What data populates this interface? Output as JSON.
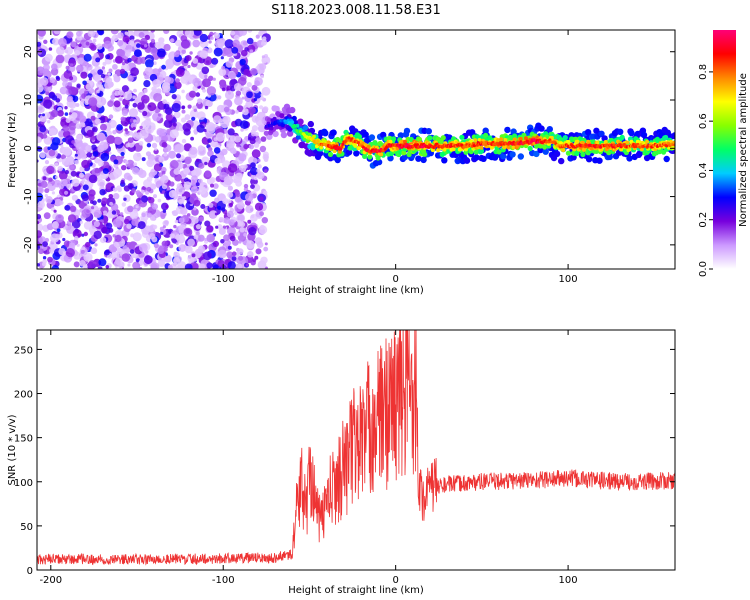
{
  "title": "S118.2023.008.11.58.E31",
  "colors": {
    "snr_line": "#ee3333",
    "colormap": [
      "#ffffff",
      "#cc99ff",
      "#7700dd",
      "#0000ff",
      "#00ccff",
      "#00ff66",
      "#88ff00",
      "#ffff00",
      "#ff8800",
      "#ff0000",
      "#ff0077"
    ]
  },
  "chart_data": [
    {
      "type": "heatmap",
      "xlabel": "Height of straight line (km)",
      "ylabel": "Frequency (Hz)",
      "xlim": [
        -208,
        162
      ],
      "ylim": [
        -25,
        24.5
      ],
      "xticks": [
        -200,
        -100,
        0,
        100
      ],
      "yticks": [
        -20,
        -10,
        0,
        10,
        20
      ],
      "xtick_labels": [
        "-200",
        "-100",
        "0",
        "100"
      ],
      "ytick_labels": [
        "-20",
        "-10",
        "0",
        "10",
        "20"
      ],
      "colorbar": {
        "label": "Normalized spectral amplitude",
        "range": [
          0,
          0.97
        ],
        "ticks": [
          0.0,
          0.2,
          0.4,
          0.6,
          0.8
        ],
        "tick_labels": [
          "0.0",
          "0.2",
          "0.4",
          "0.6",
          "0.8"
        ]
      },
      "noise_region": {
        "x_range": [
          -208,
          -75
        ],
        "amplitude_range": [
          0.05,
          0.3
        ]
      },
      "ridge": {
        "x": [
          -75,
          -68,
          -62,
          -56,
          -50,
          -44,
          -38,
          -32,
          -28,
          -24,
          -20,
          -16,
          -12,
          -8,
          -4,
          0,
          10,
          20,
          30,
          40,
          50,
          60,
          70,
          80,
          85,
          90,
          95,
          100,
          110,
          120,
          130,
          140,
          150,
          162
        ],
        "frequency": [
          4.5,
          5.5,
          5.5,
          3.5,
          2.0,
          1.0,
          0.5,
          0.0,
          2.0,
          1.5,
          0.5,
          -0.5,
          -0.5,
          -0.5,
          0.5,
          0.5,
          0.5,
          0.5,
          0.5,
          0.5,
          1.0,
          1.0,
          1.0,
          1.5,
          1.5,
          1.5,
          0.5,
          0.5,
          0.5,
          0.5,
          0.5,
          0.5,
          0.5,
          1.0
        ],
        "amplitude": [
          0.25,
          0.3,
          0.4,
          0.55,
          0.7,
          0.8,
          0.85,
          0.88,
          0.85,
          0.82,
          0.85,
          0.9,
          0.92,
          0.9,
          0.88,
          0.9,
          0.92,
          0.9,
          0.88,
          0.85,
          0.85,
          0.88,
          0.9,
          0.92,
          0.9,
          0.85,
          0.8,
          0.85,
          0.9,
          0.88,
          0.85,
          0.82,
          0.85,
          0.8
        ]
      }
    },
    {
      "type": "line",
      "xlabel": "Height of straight line (km)",
      "ylabel": "SNR (10 * v/v)",
      "xlim": [
        -208,
        162
      ],
      "ylim": [
        0,
        272
      ],
      "xticks": [
        -200,
        -100,
        0,
        100
      ],
      "yticks": [
        0,
        50,
        100,
        150,
        200,
        250
      ],
      "xtick_labels": [
        "-200",
        "-100",
        "0",
        "100"
      ],
      "ytick_labels": [
        "0",
        "50",
        "100",
        "150",
        "200",
        "250"
      ],
      "series": [
        {
          "x": [
            -208,
            -150,
            -100,
            -70,
            -60,
            -58,
            -55,
            -52,
            -49,
            -46,
            -43,
            -40,
            -37,
            -34,
            -31,
            -28,
            -25,
            -22,
            -19,
            -16,
            -13,
            -10,
            -7,
            -4,
            -1,
            2,
            5,
            8,
            10,
            11,
            12,
            13,
            15,
            20,
            22,
            23,
            30,
            50,
            80,
            100,
            130,
            162
          ],
          "y": [
            12,
            12,
            13,
            14,
            18,
            60,
            100,
            70,
            120,
            65,
            55,
            80,
            90,
            100,
            115,
            125,
            140,
            145,
            150,
            160,
            168,
            170,
            175,
            185,
            190,
            195,
            200,
            205,
            200,
            240,
            190,
            120,
            80,
            90,
            100,
            95,
            97,
            100,
            102,
            104,
            100,
            101
          ]
        }
      ]
    }
  ]
}
